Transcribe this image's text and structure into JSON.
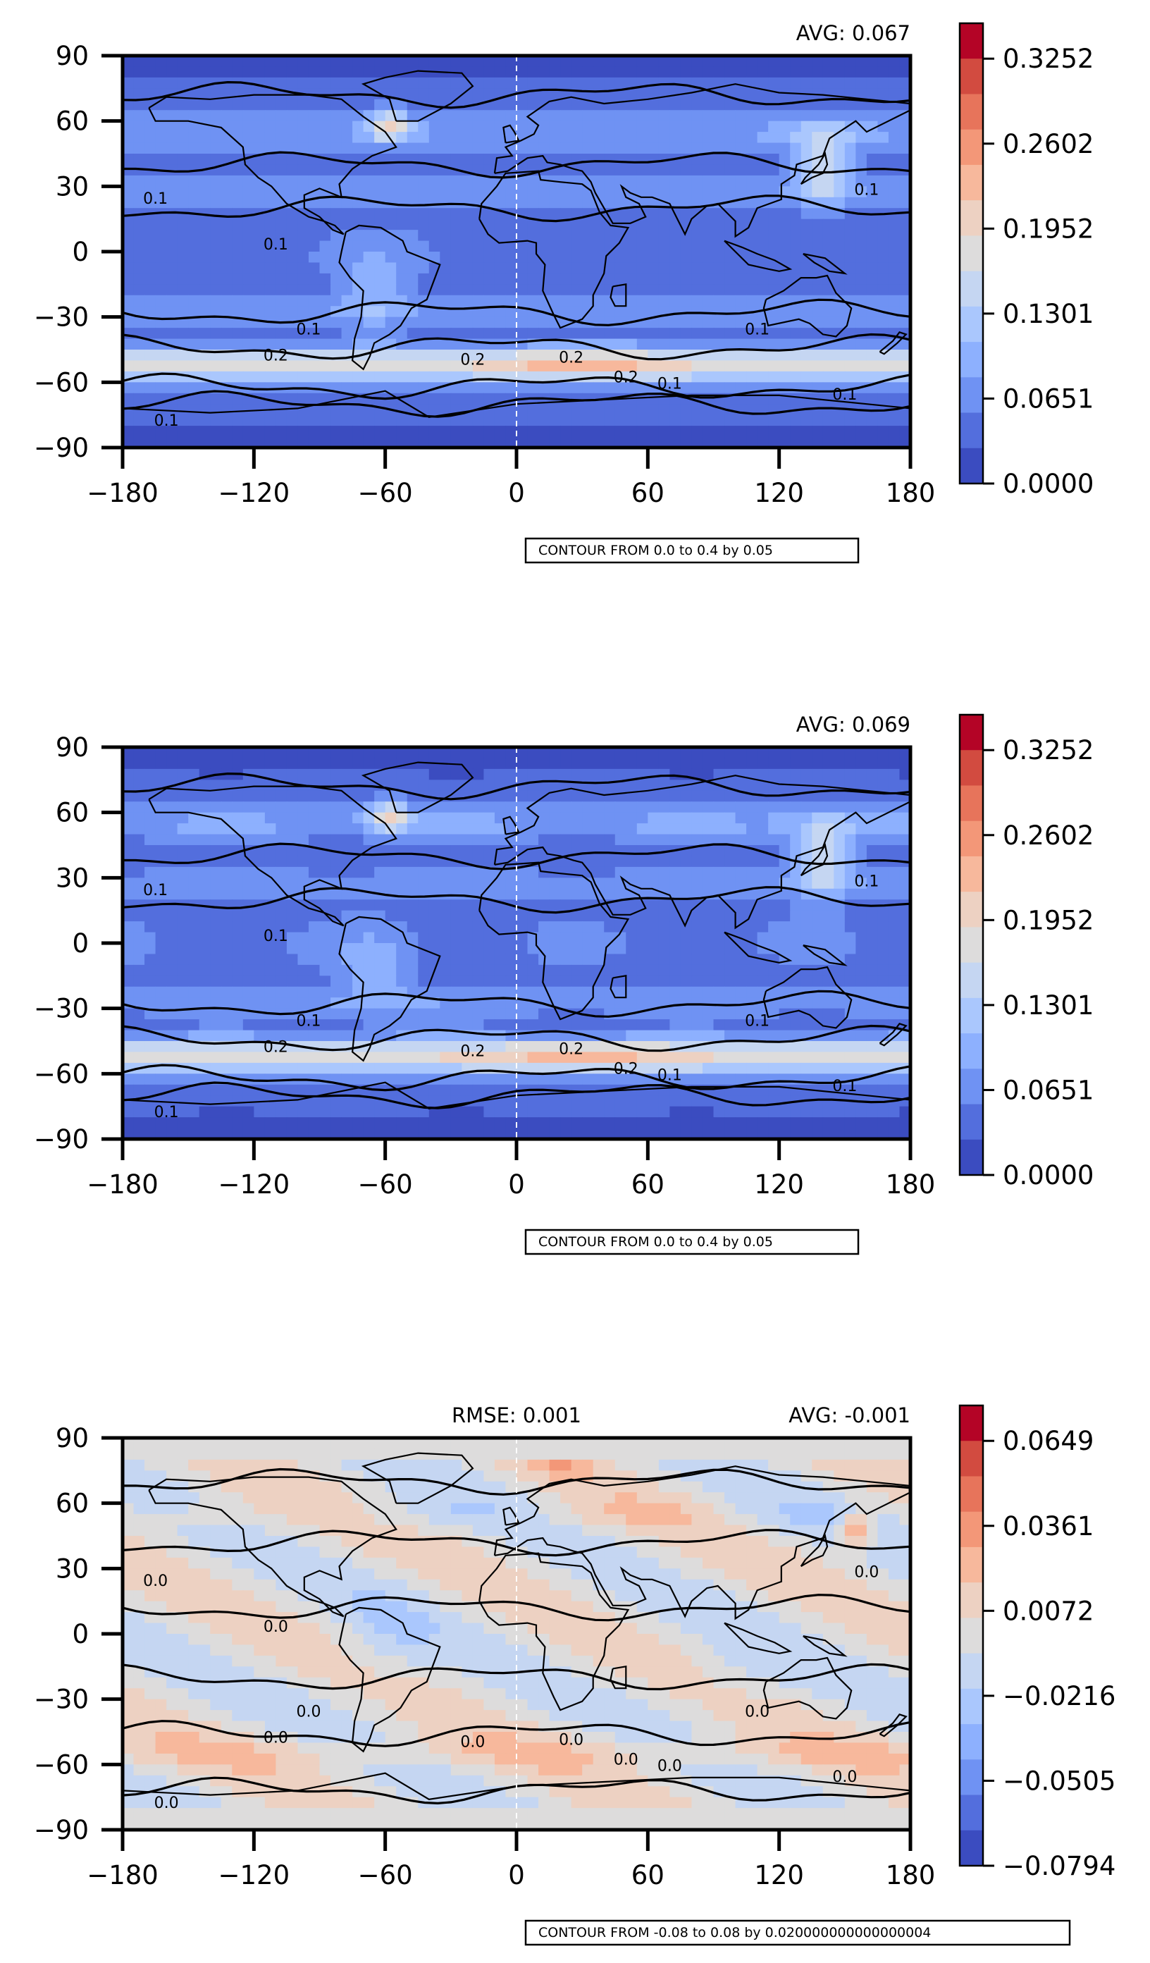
{
  "chart_data": [
    {
      "type": "heatmap",
      "subtype": "filled-contour map",
      "title_right": "AVG: 0.067",
      "title_center": "",
      "xticks": [
        -180,
        -120,
        -60,
        0,
        60,
        120,
        180
      ],
      "yticks": [
        -90,
        -60,
        -30,
        0,
        30,
        60,
        90
      ],
      "xtick_labels": [
        "−180",
        "−120",
        "−60",
        "0",
        "60",
        "120",
        "180"
      ],
      "ytick_labels": [
        "−90",
        "−60",
        "−30",
        "0",
        "30",
        "60",
        "90"
      ],
      "xlim": [
        -180,
        180
      ],
      "ylim": [
        -90,
        90
      ],
      "colorbar_ticks": [
        "0.3252",
        "0.2602",
        "0.1952",
        "0.1301",
        "0.0651",
        "0.0000"
      ],
      "colorbar_range": [
        0.0,
        0.3577
      ],
      "colorbar_colors": [
        "#b40426",
        "#d24b40",
        "#e7745b",
        "#f39778",
        "#f7b89c",
        "#edd1c2",
        "#dddcdc",
        "#c5d6f2",
        "#aac7fd",
        "#8db0fe",
        "#6f92f3",
        "#536edd",
        "#3b4cc0"
      ],
      "contour_levels": [
        0.1,
        0.2
      ],
      "contour_note": "CONTOUR FROM 0.0 to 0.4 by 0.05"
    },
    {
      "type": "heatmap",
      "subtype": "filled-contour map",
      "title_right": "AVG: 0.069",
      "title_center": "",
      "xticks": [
        -180,
        -120,
        -60,
        0,
        60,
        120,
        180
      ],
      "yticks": [
        -90,
        -60,
        -30,
        0,
        30,
        60,
        90
      ],
      "xtick_labels": [
        "−180",
        "−120",
        "−60",
        "0",
        "60",
        "120",
        "180"
      ],
      "ytick_labels": [
        "−90",
        "−60",
        "−30",
        "0",
        "30",
        "60",
        "90"
      ],
      "xlim": [
        -180,
        180
      ],
      "ylim": [
        -90,
        90
      ],
      "colorbar_ticks": [
        "0.3252",
        "0.2602",
        "0.1952",
        "0.1301",
        "0.0651",
        "0.0000"
      ],
      "colorbar_range": [
        0.0,
        0.3577
      ],
      "colorbar_colors": [
        "#b40426",
        "#d24b40",
        "#e7745b",
        "#f39778",
        "#f7b89c",
        "#edd1c2",
        "#dddcdc",
        "#c5d6f2",
        "#aac7fd",
        "#8db0fe",
        "#6f92f3",
        "#536edd",
        "#3b4cc0"
      ],
      "contour_levels": [
        0.1,
        0.2
      ],
      "contour_note": "CONTOUR FROM 0.0 to 0.4 by 0.05"
    },
    {
      "type": "heatmap",
      "subtype": "filled-contour map",
      "title_right": "AVG: -0.001",
      "title_center": "RMSE: 0.001",
      "xticks": [
        -180,
        -120,
        -60,
        0,
        60,
        120,
        180
      ],
      "yticks": [
        -90,
        -60,
        -30,
        0,
        30,
        60,
        90
      ],
      "xtick_labels": [
        "−180",
        "−120",
        "−60",
        "0",
        "60",
        "120",
        "180"
      ],
      "ytick_labels": [
        "−90",
        "−60",
        "−30",
        "0",
        "30",
        "60",
        "90"
      ],
      "xlim": [
        -180,
        180
      ],
      "ylim": [
        -90,
        90
      ],
      "colorbar_ticks": [
        "0.0649",
        "0.0361",
        "0.0072",
        "−0.0216",
        "−0.0505",
        "−0.0794"
      ],
      "colorbar_range": [
        -0.0794,
        0.0793
      ],
      "colorbar_colors": [
        "#b40426",
        "#d24b40",
        "#e7745b",
        "#f39778",
        "#f7b89c",
        "#edd1c2",
        "#dddcdc",
        "#c5d6f2",
        "#aac7fd",
        "#8db0fe",
        "#6f92f3",
        "#536edd",
        "#3b4cc0"
      ],
      "contour_levels": [
        0.0
      ],
      "contour_note": "CONTOUR FROM -0.08 to 0.08 by 0.020000000000000004"
    }
  ]
}
